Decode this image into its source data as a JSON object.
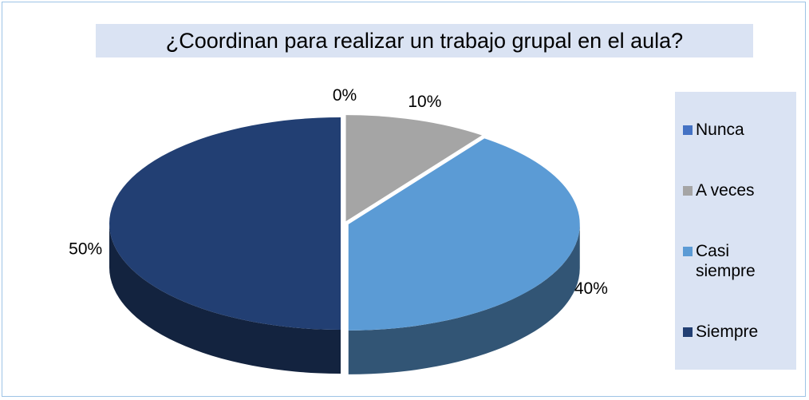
{
  "chart_data": {
    "type": "pie",
    "title": "¿Coordinan para realizar un trabajo grupal en el aula?",
    "categories": [
      "Nunca",
      "A veces",
      "Casi siempre",
      "Siempre"
    ],
    "values": [
      0,
      10,
      40,
      50
    ],
    "value_labels": [
      "0%",
      "10%",
      "40%",
      "50%"
    ],
    "colors": [
      "#4472c4",
      "#a5a5a5",
      "#5b9bd5",
      "#223f73"
    ],
    "legend": "right"
  }
}
